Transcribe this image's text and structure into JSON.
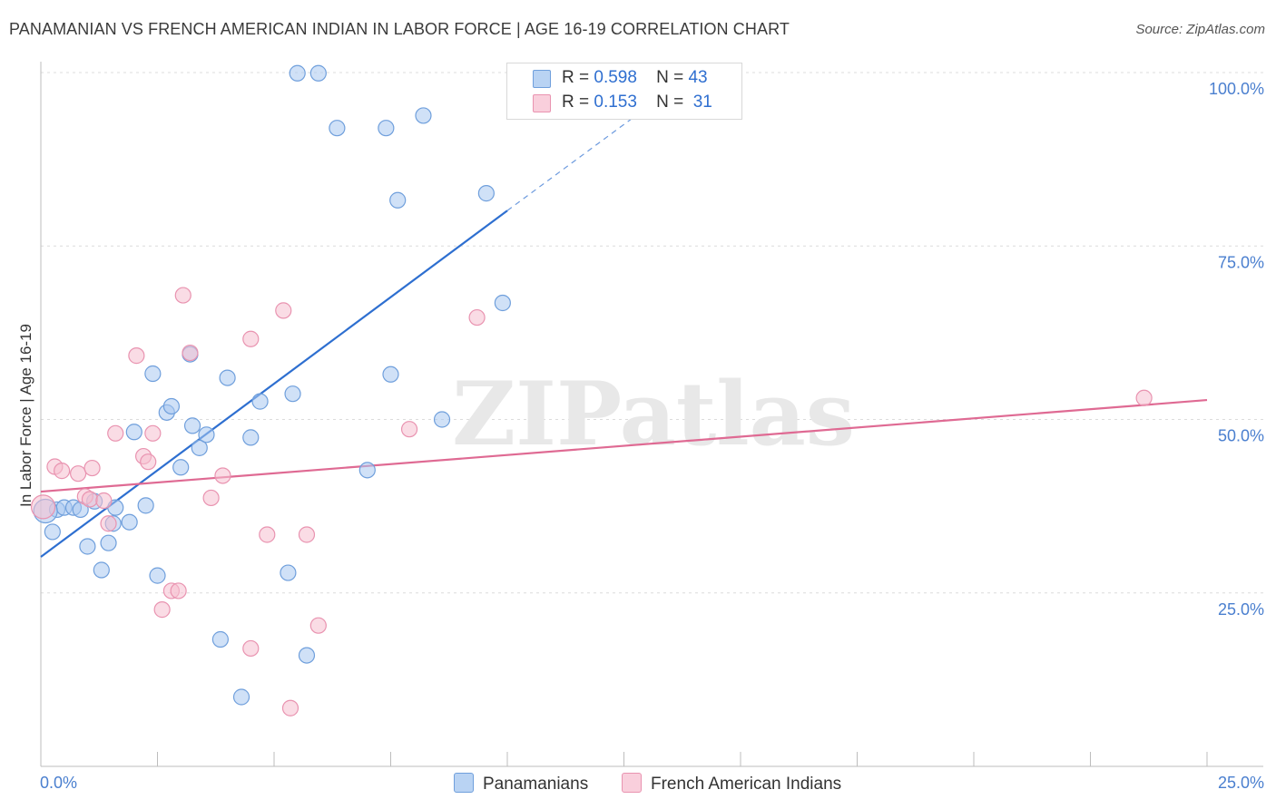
{
  "header": {
    "title": "PANAMANIAN VS FRENCH AMERICAN INDIAN IN LABOR FORCE | AGE 16-19 CORRELATION CHART",
    "source": "Source: ZipAtlas.com"
  },
  "watermark": "ZIPatlas",
  "colors": {
    "blue_fill": "#a9c8f0",
    "blue_stroke": "#6f9fdc",
    "blue_line": "#2e6fd0",
    "pink_fill": "#f6bfd0",
    "pink_stroke": "#e993b0",
    "pink_line": "#df6a93",
    "tick_text": "#4a7fcf"
  },
  "legend": {
    "rows": [
      {
        "r_label": "R =",
        "r_value": "0.598",
        "n_label": "N =",
        "n_value": "43"
      },
      {
        "r_label": "R =",
        "r_value": "0.153",
        "n_label": "N =",
        "n_value": "31"
      }
    ]
  },
  "bottom_legend": [
    "Panamanians",
    "French American Indians"
  ],
  "chart_data": {
    "type": "scatter",
    "title": "PANAMANIAN VS FRENCH AMERICAN INDIAN IN LABOR FORCE | AGE 16-19 CORRELATION CHART",
    "xlabel": "",
    "ylabel": "In Labor Force | Age 16-19",
    "xlim": [
      0,
      25
    ],
    "ylim": [
      0,
      100
    ],
    "x_tick_labels": [
      "0.0%",
      "25.0%"
    ],
    "y_ticks": [
      25,
      50,
      75,
      100
    ],
    "y_tick_labels": [
      "25.0%",
      "50.0%",
      "75.0%",
      "100.0%"
    ],
    "grid": true,
    "series": [
      {
        "name": "Panamanians",
        "r": 0.598,
        "n": 43,
        "points": [
          [
            0.25,
            33.8
          ],
          [
            0.35,
            37.0
          ],
          [
            0.5,
            37.3
          ],
          [
            0.7,
            37.3
          ],
          [
            0.85,
            37.0
          ],
          [
            1.0,
            31.7
          ],
          [
            1.15,
            38.2
          ],
          [
            1.3,
            28.3
          ],
          [
            1.45,
            32.2
          ],
          [
            1.55,
            35.0
          ],
          [
            1.6,
            37.3
          ],
          [
            1.9,
            35.2
          ],
          [
            2.0,
            48.2
          ],
          [
            2.25,
            37.6
          ],
          [
            2.4,
            56.6
          ],
          [
            2.5,
            27.5
          ],
          [
            2.7,
            51.0
          ],
          [
            2.8,
            51.9
          ],
          [
            3.0,
            43.1
          ],
          [
            3.2,
            59.4
          ],
          [
            3.25,
            49.1
          ],
          [
            3.4,
            45.9
          ],
          [
            3.55,
            47.8
          ],
          [
            3.85,
            18.3
          ],
          [
            4.0,
            56.0
          ],
          [
            4.3,
            10.0
          ],
          [
            4.5,
            47.4
          ],
          [
            4.7,
            52.6
          ],
          [
            5.3,
            27.9
          ],
          [
            5.4,
            53.7
          ],
          [
            5.5,
            99.9
          ],
          [
            5.7,
            16.0
          ],
          [
            5.95,
            99.9
          ],
          [
            6.35,
            92.0
          ],
          [
            7.0,
            42.7
          ],
          [
            7.4,
            92.0
          ],
          [
            7.5,
            56.5
          ],
          [
            7.65,
            81.6
          ],
          [
            8.2,
            93.8
          ],
          [
            8.6,
            50.0
          ],
          [
            9.55,
            82.6
          ],
          [
            9.9,
            66.8
          ],
          [
            0.1,
            36.8
          ]
        ],
        "trend": {
          "x0": 0,
          "y0": 30.2,
          "x1": 10.0,
          "y1": 80.1,
          "dash_to_x": 13.2,
          "dash_to_y": 96.0
        }
      },
      {
        "name": "French American Indians",
        "r": 0.153,
        "n": 31,
        "points": [
          [
            0.05,
            37.4
          ],
          [
            0.3,
            43.2
          ],
          [
            0.45,
            42.6
          ],
          [
            0.8,
            42.2
          ],
          [
            0.95,
            38.9
          ],
          [
            1.05,
            38.5
          ],
          [
            1.1,
            43.0
          ],
          [
            1.35,
            38.3
          ],
          [
            1.45,
            35.0
          ],
          [
            1.6,
            48.0
          ],
          [
            2.05,
            59.2
          ],
          [
            2.2,
            44.7
          ],
          [
            2.3,
            43.9
          ],
          [
            2.4,
            48.0
          ],
          [
            2.6,
            22.6
          ],
          [
            2.8,
            25.3
          ],
          [
            2.95,
            25.3
          ],
          [
            3.05,
            67.9
          ],
          [
            3.2,
            59.6
          ],
          [
            3.65,
            38.7
          ],
          [
            3.9,
            41.9
          ],
          [
            4.5,
            17.0
          ],
          [
            4.5,
            61.6
          ],
          [
            4.85,
            33.4
          ],
          [
            5.2,
            65.7
          ],
          [
            5.35,
            8.4
          ],
          [
            5.7,
            33.4
          ],
          [
            5.95,
            20.3
          ],
          [
            7.9,
            48.6
          ],
          [
            9.35,
            64.7
          ],
          [
            23.65,
            53.1
          ]
        ],
        "trend": {
          "x0": 0,
          "y0": 39.6,
          "x1": 25,
          "y1": 52.8
        }
      }
    ]
  }
}
